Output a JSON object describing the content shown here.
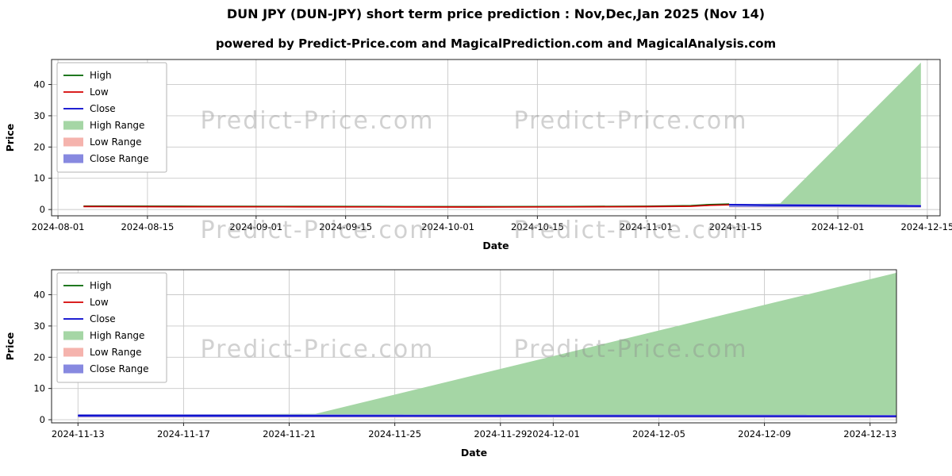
{
  "title": "DUN JPY (DUN-JPY) short term price prediction : Nov,Dec,Jan 2025 (Nov 14)",
  "subtitle": "powered by Predict-Price.com and MagicalPrediction.com and MagicalAnalysis.com",
  "watermark": "Predict-Price.com",
  "colors": {
    "high_line": "#006400",
    "low_line": "#d40000",
    "close_line": "#0000cc",
    "high_range_fill": "#a5d6a5",
    "low_range_fill": "#f5b3ad",
    "close_range_fill": "#8789e0",
    "gridline": "#c9c9c9",
    "watermark_gray": "#8c8c8c"
  },
  "legend": [
    {
      "label": "High",
      "kind": "line",
      "color": "#006400"
    },
    {
      "label": "Low",
      "kind": "line",
      "color": "#d40000"
    },
    {
      "label": "Close",
      "kind": "line",
      "color": "#0000cc"
    },
    {
      "label": "High Range",
      "kind": "patch",
      "color": "#a5d6a5"
    },
    {
      "label": "Low Range",
      "kind": "patch",
      "color": "#f5b3ad"
    },
    {
      "label": "Close Range",
      "kind": "patch",
      "color": "#8789e0"
    }
  ],
  "chart_data": [
    {
      "type": "line",
      "title": "",
      "xlabel": "Date",
      "ylabel": "Price",
      "grid": true,
      "legend_position": "upper left",
      "x_domain": [
        "2024-07-31",
        "2024-12-17"
      ],
      "y_domain": [
        -2,
        48
      ],
      "x_ticks": [
        "2024-08-01",
        "2024-08-15",
        "2024-09-01",
        "2024-09-15",
        "2024-10-01",
        "2024-10-15",
        "2024-11-01",
        "2024-11-15",
        "2024-12-01",
        "2024-12-15"
      ],
      "y_ticks": [
        0,
        10,
        20,
        30,
        40
      ],
      "series": [
        {
          "name": "High Range",
          "kind": "area",
          "color": "#a5d6a5",
          "upper": [
            [
              "2024-11-14",
              1.6
            ],
            [
              "2024-11-22",
              2.0
            ],
            [
              "2024-12-14",
              47.0
            ]
          ],
          "lower": [
            [
              "2024-11-14",
              1.0
            ],
            [
              "2024-12-14",
              1.0
            ]
          ]
        },
        {
          "name": "Low Range",
          "kind": "area",
          "color": "#f5b3ad",
          "upper": [
            [
              "2024-11-14",
              1.4
            ],
            [
              "2024-12-14",
              1.2
            ]
          ],
          "lower": [
            [
              "2024-11-14",
              0.7
            ],
            [
              "2024-12-14",
              0.6
            ]
          ]
        },
        {
          "name": "Close Range",
          "kind": "area",
          "color": "#8789e0",
          "upper": [
            [
              "2024-11-14",
              1.8
            ],
            [
              "2024-12-14",
              1.6
            ]
          ],
          "lower": [
            [
              "2024-11-14",
              0.8
            ],
            [
              "2024-12-14",
              0.7
            ]
          ]
        },
        {
          "name": "High",
          "kind": "line",
          "color": "#006400",
          "points": [
            [
              "2024-08-05",
              1.1
            ],
            [
              "2024-08-20",
              1.05
            ],
            [
              "2024-09-05",
              1.0
            ],
            [
              "2024-09-20",
              0.95
            ],
            [
              "2024-10-05",
              0.93
            ],
            [
              "2024-10-20",
              0.96
            ],
            [
              "2024-11-01",
              1.05
            ],
            [
              "2024-11-08",
              1.25
            ],
            [
              "2024-11-11",
              1.6
            ],
            [
              "2024-11-14",
              1.75
            ]
          ]
        },
        {
          "name": "Low",
          "kind": "line",
          "color": "#d40000",
          "points": [
            [
              "2024-08-05",
              0.95
            ],
            [
              "2024-08-20",
              0.9
            ],
            [
              "2024-09-05",
              0.87
            ],
            [
              "2024-09-20",
              0.84
            ],
            [
              "2024-10-05",
              0.8
            ],
            [
              "2024-10-20",
              0.84
            ],
            [
              "2024-11-01",
              0.92
            ],
            [
              "2024-11-08",
              1.05
            ],
            [
              "2024-11-11",
              1.35
            ],
            [
              "2024-11-14",
              1.5
            ]
          ]
        },
        {
          "name": "Close",
          "kind": "line",
          "color": "#0000cc",
          "points": [
            [
              "2024-11-14",
              1.6
            ],
            [
              "2024-11-20",
              1.4
            ],
            [
              "2024-11-28",
              1.3
            ],
            [
              "2024-12-06",
              1.2
            ],
            [
              "2024-12-14",
              1.1
            ]
          ]
        }
      ]
    },
    {
      "type": "line",
      "title": "",
      "xlabel": "Date",
      "ylabel": "Price",
      "grid": true,
      "legend_position": "upper left",
      "x_domain": [
        "2024-11-12",
        "2024-12-14"
      ],
      "y_domain": [
        -1,
        48
      ],
      "x_ticks": [
        "2024-11-13",
        "2024-11-17",
        "2024-11-21",
        "2024-11-25",
        "2024-11-29",
        "2024-12-01",
        "2024-12-05",
        "2024-12-09",
        "2024-12-13"
      ],
      "y_ticks": [
        0,
        10,
        20,
        30,
        40
      ],
      "series": [
        {
          "name": "High Range",
          "kind": "area",
          "color": "#a5d6a5",
          "upper": [
            [
              "2024-11-13",
              1.5
            ],
            [
              "2024-11-22",
              1.9
            ],
            [
              "2024-12-14",
              47.0
            ]
          ],
          "lower": [
            [
              "2024-11-13",
              1.0
            ],
            [
              "2024-12-14",
              1.0
            ]
          ]
        },
        {
          "name": "Low Range",
          "kind": "area",
          "color": "#f5b3ad",
          "upper": [
            [
              "2024-11-13",
              1.4
            ],
            [
              "2024-12-14",
              1.2
            ]
          ],
          "lower": [
            [
              "2024-11-13",
              0.7
            ],
            [
              "2024-12-14",
              0.6
            ]
          ]
        },
        {
          "name": "Close Range",
          "kind": "area",
          "color": "#8789e0",
          "upper": [
            [
              "2024-11-13",
              1.8
            ],
            [
              "2024-12-14",
              1.6
            ]
          ],
          "lower": [
            [
              "2024-11-13",
              0.8
            ],
            [
              "2024-12-14",
              0.7
            ]
          ]
        },
        {
          "name": "Close",
          "kind": "line",
          "color": "#0000cc",
          "points": [
            [
              "2024-11-13",
              1.3
            ],
            [
              "2024-11-21",
              1.25
            ],
            [
              "2024-12-01",
              1.2
            ],
            [
              "2024-12-14",
              1.1
            ]
          ]
        }
      ]
    }
  ]
}
